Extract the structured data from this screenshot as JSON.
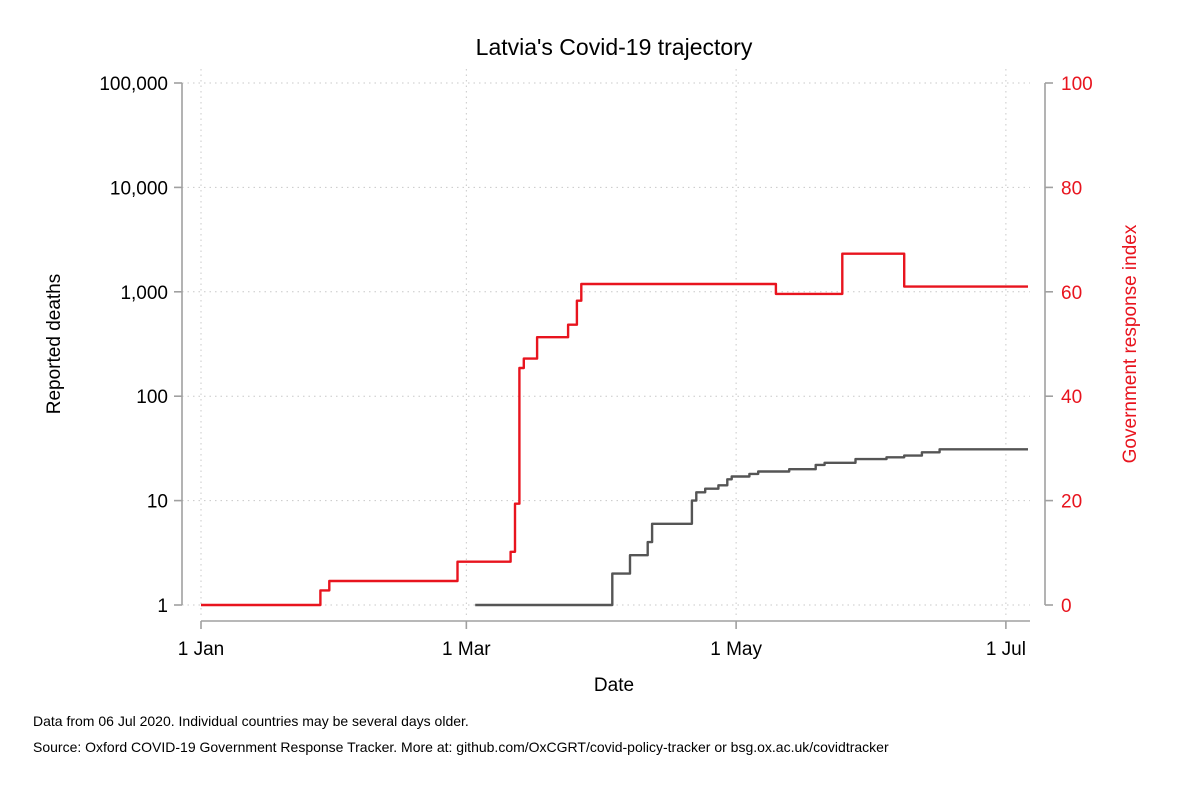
{
  "chart_data": {
    "type": "line",
    "title": "Latvia's Covid-19 trajectory",
    "xlabel": "Date",
    "ylabel_left": "Reported deaths",
    "ylabel_right": "Government response index",
    "x_range": [
      "2020-01-01",
      "2020-07-06"
    ],
    "x_ticks": [
      {
        "date": "2020-01-01",
        "label": "1 Jan"
      },
      {
        "date": "2020-03-01",
        "label": "1 Mar"
      },
      {
        "date": "2020-05-01",
        "label": "1 May"
      },
      {
        "date": "2020-07-01",
        "label": "1 Jul"
      }
    ],
    "y_left": {
      "scale": "log",
      "range": [
        1,
        100000
      ],
      "ticks": [
        {
          "value": 1,
          "label": "1"
        },
        {
          "value": 10,
          "label": "10"
        },
        {
          "value": 100,
          "label": "100"
        },
        {
          "value": 1000,
          "label": "1,000"
        },
        {
          "value": 10000,
          "label": "10,000"
        },
        {
          "value": 100000,
          "label": "100,000"
        }
      ]
    },
    "y_right": {
      "scale": "linear",
      "range": [
        0,
        100
      ],
      "ticks": [
        {
          "value": 0,
          "label": "0"
        },
        {
          "value": 20,
          "label": "20"
        },
        {
          "value": 40,
          "label": "40"
        },
        {
          "value": 60,
          "label": "60"
        },
        {
          "value": 80,
          "label": "80"
        },
        {
          "value": 100,
          "label": "100"
        }
      ]
    },
    "grid": true,
    "series": [
      {
        "axis": "right",
        "color": "#e8141e",
        "step": true,
        "points": [
          [
            "2020-01-01",
            0
          ],
          [
            "2020-01-28",
            2.8
          ],
          [
            "2020-01-30",
            4.6
          ],
          [
            "2020-02-28",
            8.3
          ],
          [
            "2020-03-11",
            10.2
          ],
          [
            "2020-03-12",
            19.4
          ],
          [
            "2020-03-13",
            45.4
          ],
          [
            "2020-03-14",
            47.2
          ],
          [
            "2020-03-17",
            51.3
          ],
          [
            "2020-03-24",
            53.7
          ],
          [
            "2020-03-26",
            58.3
          ],
          [
            "2020-03-27",
            61.5
          ],
          [
            "2020-05-10",
            59.6
          ],
          [
            "2020-05-25",
            67.3
          ],
          [
            "2020-06-08",
            61.0
          ],
          [
            "2020-07-06",
            61.0
          ]
        ]
      },
      {
        "axis": "left",
        "color": "#555555",
        "step": true,
        "points": [
          [
            "2020-03-03",
            1
          ],
          [
            "2020-04-03",
            2
          ],
          [
            "2020-04-07",
            3
          ],
          [
            "2020-04-11",
            4
          ],
          [
            "2020-04-12",
            6
          ],
          [
            "2020-04-21",
            10
          ],
          [
            "2020-04-22",
            12
          ],
          [
            "2020-04-24",
            13
          ],
          [
            "2020-04-27",
            14
          ],
          [
            "2020-04-29",
            16
          ],
          [
            "2020-04-30",
            17
          ],
          [
            "2020-05-04",
            18
          ],
          [
            "2020-05-06",
            19
          ],
          [
            "2020-05-13",
            20
          ],
          [
            "2020-05-19",
            22
          ],
          [
            "2020-05-21",
            23
          ],
          [
            "2020-05-28",
            25
          ],
          [
            "2020-06-04",
            26
          ],
          [
            "2020-06-08",
            27
          ],
          [
            "2020-06-12",
            29
          ],
          [
            "2020-06-16",
            31
          ],
          [
            "2020-07-06",
            31
          ]
        ]
      }
    ]
  },
  "notes": {
    "line1": "Data from 06 Jul 2020. Individual countries may be several days older.",
    "line2": "Source: Oxford COVID-19 Government Response Tracker. More at: github.com/OxCGRT/covid-policy-tracker or bsg.ox.ac.uk/covidtracker"
  }
}
